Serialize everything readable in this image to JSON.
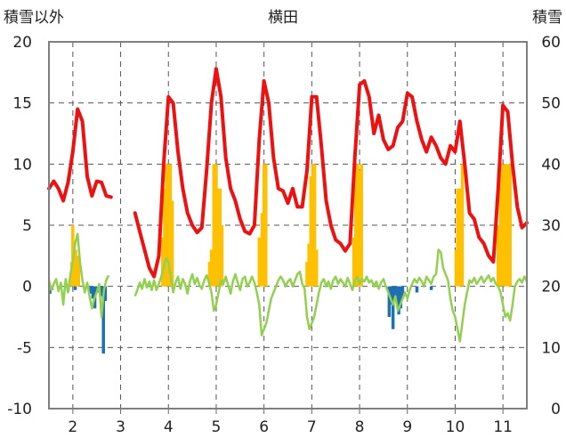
{
  "chart_data": {
    "type": "line",
    "title": "横田",
    "ylabel_left": "積雪以外",
    "ylabel_right": "積雪",
    "x_ticks": [
      "2",
      "3",
      "4",
      "5",
      "6",
      "7",
      "8",
      "9",
      "10",
      "11"
    ],
    "xlim": [
      1.5,
      11.5
    ],
    "ylim_left": [
      -10,
      20
    ],
    "ylim_right": [
      0,
      60
    ],
    "y_ticks_left": [
      "20",
      "15",
      "10",
      "5",
      "0",
      "-5",
      "-10"
    ],
    "y_ticks_right": [
      "60",
      "50",
      "40",
      "30",
      "20",
      "10",
      "0"
    ],
    "grid": true,
    "colors": {
      "red": "#ee1111",
      "green": "#92d050",
      "orange": "#ffc000",
      "blue": "#1f6fb5"
    },
    "red_series": [
      [
        1.5,
        8.0
      ],
      [
        1.6,
        8.6
      ],
      [
        1.7,
        8.0
      ],
      [
        1.8,
        7.0
      ],
      [
        1.9,
        8.5
      ],
      [
        2.0,
        11.0
      ],
      [
        2.1,
        14.5
      ],
      [
        2.2,
        13.5
      ],
      [
        2.3,
        9.0
      ],
      [
        2.4,
        7.4
      ],
      [
        2.5,
        8.6
      ],
      [
        2.6,
        8.5
      ],
      [
        2.7,
        7.4
      ],
      [
        2.8,
        7.3
      ],
      null,
      [
        3.3,
        6.0
      ],
      [
        3.4,
        4.5
      ],
      [
        3.5,
        3.0
      ],
      [
        3.6,
        1.5
      ],
      [
        3.7,
        0.8
      ],
      [
        3.8,
        2.5
      ],
      [
        3.9,
        10.0
      ],
      [
        4.0,
        15.5
      ],
      [
        4.1,
        15.0
      ],
      [
        4.2,
        11.0
      ],
      [
        4.3,
        8.0
      ],
      [
        4.4,
        6.0
      ],
      [
        4.5,
        5.0
      ],
      [
        4.6,
        4.4
      ],
      [
        4.7,
        4.8
      ],
      [
        4.8,
        9.5
      ],
      [
        4.9,
        15.0
      ],
      [
        5.0,
        17.8
      ],
      [
        5.1,
        15.5
      ],
      [
        5.2,
        10.5
      ],
      [
        5.3,
        8.0
      ],
      [
        5.4,
        7.0
      ],
      [
        5.5,
        5.5
      ],
      [
        5.6,
        4.5
      ],
      [
        5.7,
        4.3
      ],
      [
        5.8,
        5.0
      ],
      [
        5.9,
        12.0
      ],
      [
        6.0,
        16.8
      ],
      [
        6.1,
        15.0
      ],
      [
        6.2,
        10.5
      ],
      [
        6.3,
        8.0
      ],
      [
        6.4,
        7.8
      ],
      [
        6.5,
        6.8
      ],
      [
        6.6,
        8.0
      ],
      [
        6.7,
        6.5
      ],
      [
        6.8,
        6.5
      ],
      [
        6.9,
        9.5
      ],
      [
        7.0,
        15.5
      ],
      [
        7.1,
        15.5
      ],
      [
        7.2,
        11.5
      ],
      [
        7.3,
        7.0
      ],
      [
        7.4,
        5.0
      ],
      [
        7.5,
        3.8
      ],
      [
        7.6,
        3.5
      ],
      [
        7.7,
        2.9
      ],
      [
        7.8,
        3.5
      ],
      [
        7.9,
        10.5
      ],
      [
        8.0,
        16.5
      ],
      [
        8.1,
        16.8
      ],
      [
        8.2,
        15.5
      ],
      [
        8.3,
        12.5
      ],
      [
        8.4,
        14.0
      ],
      [
        8.5,
        12.0
      ],
      [
        8.6,
        11.2
      ],
      [
        8.7,
        11.5
      ],
      [
        8.8,
        13.0
      ],
      [
        8.9,
        13.5
      ],
      [
        9.0,
        15.8
      ],
      [
        9.1,
        15.5
      ],
      [
        9.2,
        13.5
      ],
      [
        9.3,
        12.0
      ],
      [
        9.4,
        11.0
      ],
      [
        9.5,
        12.2
      ],
      [
        9.6,
        11.5
      ],
      [
        9.7,
        10.5
      ],
      [
        9.8,
        10.0
      ],
      [
        9.9,
        11.5
      ],
      [
        10.0,
        11.0
      ],
      [
        10.1,
        13.5
      ],
      [
        10.2,
        10.0
      ],
      [
        10.3,
        6.0
      ],
      [
        10.4,
        5.5
      ],
      [
        10.5,
        4.0
      ],
      [
        10.6,
        3.5
      ],
      [
        10.7,
        2.5
      ],
      [
        10.8,
        2.0
      ],
      [
        10.9,
        8.0
      ],
      [
        11.0,
        14.8
      ],
      [
        11.1,
        14.3
      ],
      [
        11.2,
        10.0
      ],
      [
        11.3,
        6.5
      ],
      [
        11.4,
        4.8
      ],
      [
        11.5,
        5.2
      ]
    ],
    "green_series": [
      [
        1.5,
        0.5
      ],
      [
        1.55,
        -0.3
      ],
      [
        1.6,
        0.2
      ],
      [
        1.65,
        0.6
      ],
      [
        1.7,
        -0.4
      ],
      [
        1.75,
        0.3
      ],
      [
        1.8,
        -1.5
      ],
      [
        1.85,
        0.6
      ],
      [
        1.9,
        -0.5
      ],
      [
        1.95,
        1.0
      ],
      [
        2.0,
        2.0
      ],
      [
        2.05,
        3.5
      ],
      [
        2.1,
        4.3
      ],
      [
        2.15,
        2.0
      ],
      [
        2.2,
        0.5
      ],
      [
        2.25,
        -0.5
      ],
      [
        2.3,
        0.3
      ],
      [
        2.35,
        -0.8
      ],
      [
        2.4,
        -1.8
      ],
      [
        2.45,
        -1.0
      ],
      [
        2.5,
        -0.5
      ],
      [
        2.55,
        0.2
      ],
      [
        2.6,
        -2.5
      ],
      [
        2.65,
        -0.3
      ],
      [
        2.7,
        0.5
      ],
      [
        2.75,
        0.9
      ],
      null,
      [
        3.3,
        -0.8
      ],
      [
        3.35,
        -0.3
      ],
      [
        3.4,
        0.3
      ],
      [
        3.45,
        -0.2
      ],
      [
        3.5,
        0.6
      ],
      [
        3.55,
        -0.1
      ],
      [
        3.6,
        0.4
      ],
      [
        3.65,
        -0.3
      ],
      [
        3.7,
        0.5
      ],
      [
        3.75,
        -0.3
      ],
      [
        3.8,
        0.2
      ],
      [
        3.85,
        0.8
      ],
      [
        3.9,
        1.5
      ],
      [
        3.95,
        2.3
      ],
      [
        4.0,
        2.0
      ],
      [
        4.05,
        0.8
      ],
      [
        4.1,
        -0.5
      ],
      [
        4.15,
        0.3
      ],
      [
        4.2,
        0.8
      ],
      [
        4.25,
        -0.2
      ],
      [
        4.3,
        0.6
      ],
      [
        4.35,
        0.2
      ],
      [
        4.4,
        -0.6
      ],
      [
        4.45,
        0.4
      ],
      [
        4.5,
        1.0
      ],
      [
        4.55,
        0.2
      ],
      [
        4.6,
        0.7
      ],
      [
        4.65,
        0.1
      ],
      [
        4.7,
        -0.2
      ],
      [
        4.75,
        0.5
      ],
      [
        4.8,
        0.9
      ],
      [
        4.85,
        0.3
      ],
      [
        4.9,
        -0.5
      ],
      [
        4.95,
        -2.0
      ],
      [
        5.0,
        -1.5
      ],
      [
        5.05,
        -0.5
      ],
      [
        5.1,
        0.5
      ],
      [
        5.15,
        0.2
      ],
      [
        5.2,
        0.8
      ],
      [
        5.25,
        0.1
      ],
      [
        5.3,
        -0.6
      ],
      [
        5.35,
        0.4
      ],
      [
        5.4,
        1.0
      ],
      [
        5.45,
        0.3
      ],
      [
        5.5,
        -0.3
      ],
      [
        5.55,
        0.6
      ],
      [
        5.6,
        0.8
      ],
      [
        5.65,
        0.0
      ],
      [
        5.7,
        0.3
      ],
      [
        5.75,
        0.8
      ],
      [
        5.8,
        0.3
      ],
      [
        5.85,
        -0.5
      ],
      [
        5.9,
        -1.5
      ],
      [
        5.95,
        -4.0
      ],
      [
        6.0,
        -3.5
      ],
      [
        6.05,
        -3.0
      ],
      [
        6.1,
        -2.0
      ],
      [
        6.15,
        -1.0
      ],
      [
        6.2,
        -0.5
      ],
      [
        6.25,
        0.0
      ],
      [
        6.3,
        0.5
      ],
      [
        6.35,
        0.8
      ],
      [
        6.4,
        0.5
      ],
      [
        6.45,
        0.0
      ],
      [
        6.5,
        0.4
      ],
      [
        6.55,
        0.6
      ],
      [
        6.6,
        0.0
      ],
      [
        6.65,
        0.5
      ],
      [
        6.7,
        1.0
      ],
      [
        6.75,
        1.2
      ],
      [
        6.8,
        0.2
      ],
      [
        6.85,
        -0.2
      ],
      [
        6.9,
        -2.5
      ],
      [
        6.95,
        -3.5
      ],
      [
        7.0,
        -3.0
      ],
      [
        7.05,
        -2.5
      ],
      [
        7.1,
        -1.5
      ],
      [
        7.15,
        -0.5
      ],
      [
        7.2,
        0.3
      ],
      [
        7.25,
        0.6
      ],
      [
        7.3,
        0.0
      ],
      [
        7.35,
        0.4
      ],
      [
        7.4,
        -0.2
      ],
      [
        7.45,
        0.5
      ],
      [
        7.5,
        0.8
      ],
      [
        7.55,
        0.2
      ],
      [
        7.6,
        0.6
      ],
      [
        7.65,
        0.3
      ],
      [
        7.7,
        0.0
      ],
      [
        7.75,
        0.7
      ],
      [
        7.8,
        0.2
      ],
      [
        7.85,
        -0.3
      ],
      [
        7.9,
        0.5
      ],
      [
        7.95,
        0.8
      ],
      [
        8.0,
        0.2
      ],
      [
        8.05,
        0.6
      ],
      [
        8.1,
        0.4
      ],
      [
        8.15,
        0.8
      ],
      [
        8.2,
        0.3
      ],
      [
        8.25,
        0.5
      ],
      [
        8.3,
        0.0
      ],
      [
        8.35,
        0.4
      ],
      [
        8.4,
        -0.2
      ],
      [
        8.45,
        0.3
      ],
      [
        8.5,
        0.6
      ],
      [
        8.55,
        0.0
      ],
      [
        8.6,
        -0.5
      ],
      [
        8.65,
        -1.0
      ],
      [
        8.7,
        -1.5
      ],
      [
        8.75,
        -0.8
      ],
      [
        8.8,
        -2.0
      ],
      [
        8.85,
        -1.5
      ],
      [
        8.9,
        -1.0
      ],
      [
        8.95,
        -0.5
      ],
      [
        9.0,
        -1.0
      ],
      [
        9.05,
        -0.3
      ],
      [
        9.1,
        0.2
      ],
      [
        9.15,
        0.6
      ],
      [
        9.2,
        0.3
      ],
      [
        9.25,
        0.7
      ],
      [
        9.3,
        0.4
      ],
      [
        9.35,
        0.0
      ],
      [
        9.4,
        0.8
      ],
      [
        9.45,
        0.5
      ],
      [
        9.5,
        0.2
      ],
      [
        9.55,
        0.8
      ],
      [
        9.6,
        1.0
      ],
      [
        9.65,
        3.0
      ],
      [
        9.7,
        2.8
      ],
      [
        9.75,
        1.5
      ],
      [
        9.8,
        1.0
      ],
      [
        9.85,
        0.5
      ],
      [
        9.9,
        -1.0
      ],
      [
        9.95,
        -2.0
      ],
      [
        10.0,
        -2.5
      ],
      [
        10.05,
        -3.5
      ],
      [
        10.1,
        -4.5
      ],
      [
        10.15,
        -3.0
      ],
      [
        10.2,
        -1.5
      ],
      [
        10.25,
        -0.5
      ],
      [
        10.3,
        0.5
      ],
      [
        10.35,
        0.3
      ],
      [
        10.4,
        0.7
      ],
      [
        10.45,
        0.2
      ],
      [
        10.5,
        0.5
      ],
      [
        10.55,
        0.8
      ],
      [
        10.6,
        0.3
      ],
      [
        10.65,
        0.6
      ],
      [
        10.7,
        0.9
      ],
      [
        10.75,
        0.4
      ],
      [
        10.8,
        0.7
      ],
      [
        10.85,
        0.2
      ],
      [
        10.9,
        0.0
      ],
      [
        10.95,
        -0.5
      ],
      [
        11.0,
        -1.5
      ],
      [
        11.05,
        -2.5
      ],
      [
        11.1,
        -2.2
      ],
      [
        11.15,
        -2.8
      ],
      [
        11.2,
        -1.5
      ],
      [
        11.25,
        0.0
      ],
      [
        11.3,
        0.4
      ],
      [
        11.35,
        0.6
      ],
      [
        11.4,
        0.3
      ],
      [
        11.45,
        0.8
      ],
      [
        11.5,
        0.4
      ]
    ],
    "orange_bars": [
      [
        1.98,
        2.0
      ],
      [
        2.0,
        5.0
      ],
      [
        2.06,
        3.0
      ],
      [
        2.12,
        2.5
      ],
      [
        3.88,
        4.0
      ],
      [
        3.92,
        8.0
      ],
      [
        3.96,
        10.0
      ],
      [
        4.0,
        10.0
      ],
      [
        4.04,
        10.0
      ],
      [
        4.08,
        7.0
      ],
      [
        4.86,
        2.0
      ],
      [
        4.9,
        3.0
      ],
      [
        4.95,
        10.0
      ],
      [
        5.0,
        10.0
      ],
      [
        5.04,
        8.0
      ],
      [
        5.08,
        8.0
      ],
      [
        5.12,
        5.0
      ],
      [
        5.9,
        4.0
      ],
      [
        5.96,
        6.0
      ],
      [
        6.0,
        10.0
      ],
      [
        6.04,
        10.0
      ],
      [
        6.9,
        2.0
      ],
      [
        6.94,
        3.5
      ],
      [
        6.98,
        9.0
      ],
      [
        7.02,
        10.0
      ],
      [
        7.06,
        10.0
      ],
      [
        7.1,
        3.0
      ],
      [
        7.88,
        4.0
      ],
      [
        7.92,
        10.0
      ],
      [
        7.96,
        10.0
      ],
      [
        8.0,
        9.5
      ],
      [
        8.04,
        10.0
      ],
      [
        10.02,
        3.0
      ],
      [
        10.05,
        8.0
      ],
      [
        10.1,
        8.0
      ],
      [
        10.15,
        10.0
      ],
      [
        10.9,
        5.0
      ],
      [
        10.95,
        10.0
      ],
      [
        11.0,
        10.0
      ],
      [
        11.05,
        10.0
      ],
      [
        11.1,
        10.0
      ],
      [
        11.15,
        10.0
      ]
    ],
    "blue_bars": [
      [
        1.52,
        -0.6
      ],
      [
        1.56,
        -0.3
      ],
      [
        1.9,
        -0.4
      ],
      [
        2.05,
        -0.3
      ],
      [
        2.38,
        -0.6
      ],
      [
        2.42,
        -1.0
      ],
      [
        2.46,
        -1.8
      ],
      [
        2.52,
        -0.5
      ],
      [
        2.6,
        -0.8
      ],
      [
        2.64,
        -5.5
      ],
      [
        2.68,
        -1.2
      ],
      [
        8.62,
        -2.5
      ],
      [
        8.66,
        -1.5
      ],
      [
        8.7,
        -3.5
      ],
      [
        8.74,
        -0.8
      ],
      [
        8.78,
        -1.2
      ],
      [
        8.82,
        -2.3
      ],
      [
        8.86,
        -1.8
      ],
      [
        8.9,
        -1.0
      ],
      [
        9.2,
        -0.5
      ],
      [
        9.5,
        -0.3
      ]
    ]
  }
}
